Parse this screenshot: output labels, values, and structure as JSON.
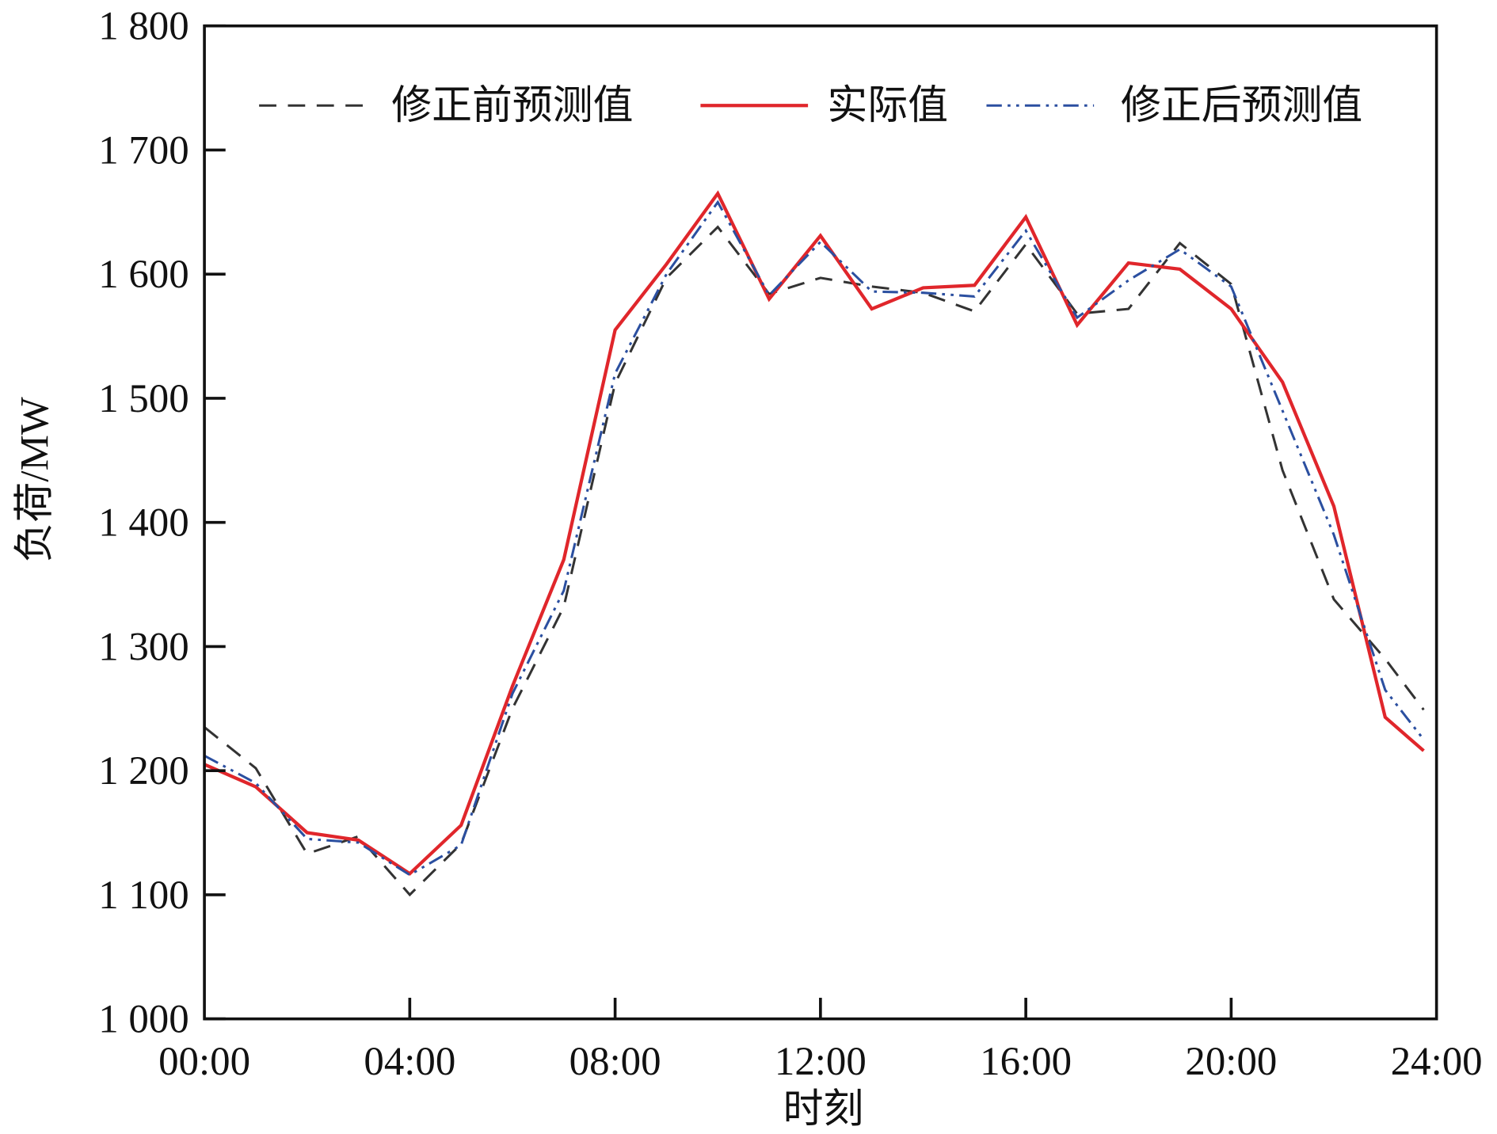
{
  "chart_data": {
    "type": "line",
    "title": "",
    "xlabel": "时刻",
    "ylabel": "负荷/MW",
    "xlim": [
      0,
      24
    ],
    "ylim": [
      1000,
      1800
    ],
    "x_ticks": [
      0,
      4,
      8,
      12,
      16,
      20,
      24
    ],
    "x_tick_labels": [
      "00:00",
      "04:00",
      "08:00",
      "12:00",
      "16:00",
      "20:00",
      "24:00"
    ],
    "y_ticks": [
      1000,
      1100,
      1200,
      1300,
      1400,
      1500,
      1600,
      1700,
      1800
    ],
    "y_tick_labels": [
      "1 000",
      "1 100",
      "1 200",
      "1 300",
      "1 400",
      "1 500",
      "1 600",
      "1 700",
      "1 800"
    ],
    "grid": false,
    "legend_placement": "top",
    "x": [
      0,
      1,
      2,
      3,
      4,
      5,
      6,
      7,
      8,
      9,
      10,
      11,
      12,
      13,
      14,
      15,
      16,
      17,
      18,
      19,
      20,
      21,
      22,
      23,
      23.75
    ],
    "series": [
      {
        "name": "修正前预测值",
        "color": "#333333",
        "style": "dashed",
        "values": [
          1235,
          1202,
          1133,
          1147,
          1100,
          1141,
          1250,
          1332,
          1512,
          1597,
          1638,
          1584,
          1597,
          1590,
          1585,
          1570,
          1624,
          1568,
          1572,
          1625,
          1592,
          1442,
          1338,
          1290,
          1249
        ]
      },
      {
        "name": "实际值",
        "color": "#e0262b",
        "style": "solid",
        "values": [
          1205,
          1187,
          1150,
          1144,
          1117,
          1156,
          1268,
          1370,
          1555,
          1608,
          1665,
          1580,
          1631,
          1572,
          1589,
          1591,
          1646,
          1559,
          1609,
          1604,
          1572,
          1513,
          1413,
          1243,
          1216
        ]
      },
      {
        "name": "修正后预测值",
        "color": "#2b4fa0",
        "style": "dash-dot-dot",
        "values": [
          1212,
          1190,
          1145,
          1142,
          1116,
          1140,
          1262,
          1345,
          1520,
          1600,
          1658,
          1583,
          1626,
          1586,
          1585,
          1582,
          1635,
          1565,
          1595,
          1620,
          1590,
          1490,
          1390,
          1265,
          1225
        ]
      }
    ]
  }
}
